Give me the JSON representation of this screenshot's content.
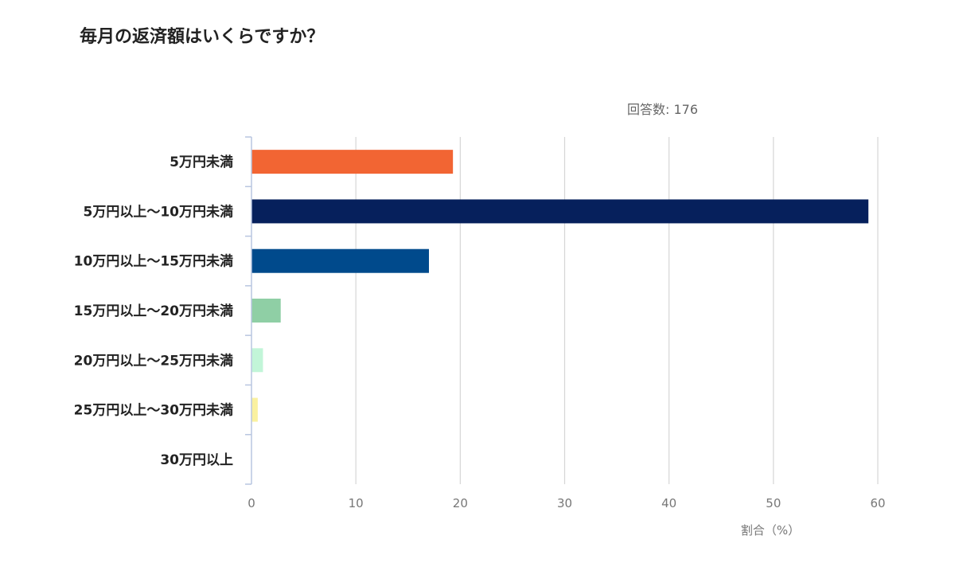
{
  "title": "毎月の返済額はいくらですか？",
  "respondents": "回答数: 176",
  "chart_data": {
    "type": "bar",
    "orientation": "horizontal",
    "categories": [
      "5万円未満",
      "5万円以上〜10万円未満",
      "10万円以上〜15万円未満",
      "15万円以上〜20万円未満",
      "20万円以上〜25万円未満",
      "25万円以上〜30万円未満",
      "30万円以上"
    ],
    "values": [
      19.3,
      59.1,
      17.0,
      2.8,
      1.1,
      0.6,
      0
    ],
    "colors": [
      "#f26533",
      "#06205c",
      "#004a8c",
      "#8fcfa5",
      "#c2f5d8",
      "#faf1a0",
      "#cccccc"
    ],
    "xlabel": "割合（%）",
    "xlim": [
      0,
      60
    ],
    "xticks": [
      "0",
      "10",
      "20",
      "30",
      "40",
      "50",
      "60"
    ],
    "grid": true
  }
}
